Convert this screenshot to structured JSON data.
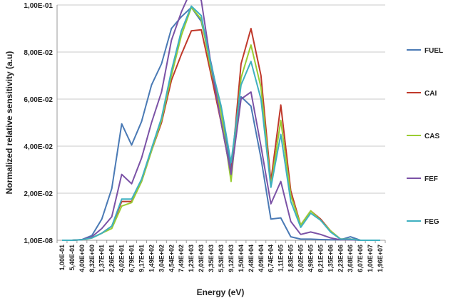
{
  "chart_data": {
    "type": "line",
    "title": "",
    "xlabel": "Energy (eV)",
    "ylabel": "Normalized relative sensitivity (a.u)",
    "ylim": [
      0,
      0.1
    ],
    "y_ticks": [
      {
        "value": 0.0,
        "label": "1,00E-08"
      },
      {
        "value": 0.02,
        "label": "2,00E-02"
      },
      {
        "value": 0.04,
        "label": "4,00E-02"
      },
      {
        "value": 0.06,
        "label": "6,00E-02"
      },
      {
        "value": 0.08,
        "label": "8,00E-02"
      },
      {
        "value": 0.1,
        "label": "1,00E-01"
      }
    ],
    "grid": "horizontal",
    "legend": "right",
    "categories": [
      "1,00E-01",
      "5,40E-01",
      "4,00E+00",
      "8,32E+00",
      "1,37E+01",
      "2,26E+01",
      "4,02E+01",
      "6,79E+01",
      "9,17E+01",
      "1,49E+02",
      "3,04E+02",
      "4,54E+02",
      "7,49E+02",
      "1,23E+03",
      "2,03E+03",
      "3,35E+03",
      "5,53E+03",
      "9,12E+03",
      "1,50E+04",
      "2,48E+04",
      "4,09E+04",
      "6,74E+04",
      "1,11E+05",
      "1,83E+05",
      "3,02E+05",
      "4,98E+05",
      "8,21E+05",
      "1,35E+06",
      "2,23E+06",
      "3,68E+06",
      "6,07E+06",
      "1,00E+07",
      "1,96E+07"
    ],
    "series": [
      {
        "name": "FUEL",
        "color": "#4a7ab5",
        "values": [
          0,
          0,
          0.0003,
          0.002,
          0.009,
          0.022,
          0.0495,
          0.0405,
          0.0505,
          0.066,
          0.075,
          0.09,
          0.095,
          0.099,
          0.093,
          0.075,
          0.055,
          0.0305,
          0.061,
          0.057,
          0.035,
          0.009,
          0.0095,
          0.0015,
          0.0005,
          0.0005,
          0.0003,
          0.0002,
          0.0002,
          0.0015,
          0,
          0,
          0
        ]
      },
      {
        "name": "CAI",
        "color": "#c0392b",
        "values": [
          0,
          0,
          0.0002,
          0.001,
          0.003,
          0.006,
          0.0165,
          0.0165,
          0.025,
          0.038,
          0.05,
          0.068,
          0.079,
          0.089,
          0.0895,
          0.07,
          0.05,
          0.028,
          0.075,
          0.09,
          0.07,
          0.025,
          0.0575,
          0.021,
          0.0065,
          0.0125,
          0.009,
          0.004,
          0.0005,
          0.0005,
          0,
          0,
          0
        ]
      },
      {
        "name": "CAS",
        "color": "#9acd32",
        "values": [
          0,
          0,
          0.0002,
          0.001,
          0.003,
          0.005,
          0.0145,
          0.016,
          0.025,
          0.038,
          0.051,
          0.07,
          0.087,
          0.099,
          0.094,
          0.072,
          0.054,
          0.025,
          0.069,
          0.083,
          0.065,
          0.023,
          0.051,
          0.019,
          0.0065,
          0.0125,
          0.0085,
          0.004,
          0.0005,
          0.0005,
          0,
          0,
          0
        ]
      },
      {
        "name": "FEF",
        "color": "#7b52a6",
        "values": [
          0,
          0,
          0.0002,
          0.0015,
          0.005,
          0.01,
          0.028,
          0.024,
          0.035,
          0.05,
          0.063,
          0.085,
          0.097,
          0.1065,
          0.102,
          0.074,
          0.05,
          0.028,
          0.06,
          0.063,
          0.04,
          0.0155,
          0.025,
          0.008,
          0.0025,
          0.0035,
          0.0025,
          0.001,
          0.0002,
          0.0002,
          0,
          0,
          0
        ]
      },
      {
        "name": "FEG",
        "color": "#3fb0c0",
        "values": [
          0,
          0,
          0.0002,
          0.001,
          0.003,
          0.006,
          0.0175,
          0.0175,
          0.026,
          0.039,
          0.052,
          0.072,
          0.089,
          0.0995,
          0.0955,
          0.074,
          0.057,
          0.033,
          0.066,
          0.076,
          0.06,
          0.0225,
          0.045,
          0.0165,
          0.0055,
          0.0115,
          0.0085,
          0.0035,
          0.0005,
          0.0005,
          0,
          0,
          0
        ]
      }
    ]
  }
}
